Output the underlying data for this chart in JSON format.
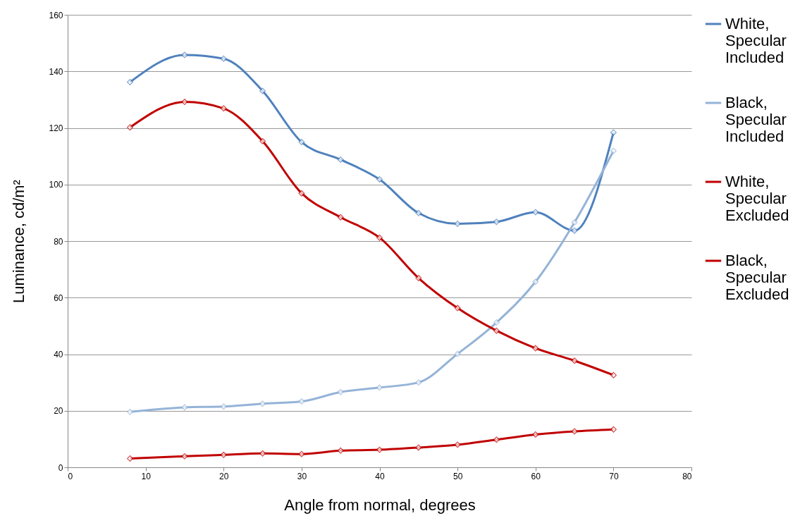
{
  "chart_data": {
    "type": "line",
    "xlabel": "Angle from normal, degrees",
    "ylabel": "Luminance, cd/m²",
    "x": [
      8,
      15,
      20,
      25,
      30,
      35,
      40,
      45,
      50,
      55,
      60,
      65,
      70
    ],
    "series": [
      {
        "name": "White, Specular Included",
        "color": "#4f81bd",
        "values": [
          136.2,
          145.8,
          144.5,
          133.1,
          115.0,
          108.8,
          101.8,
          89.9,
          86.1,
          86.8,
          90.2,
          83.7,
          118.4
        ]
      },
      {
        "name": "Black, Specular Included",
        "color": "#95b3d7",
        "values": [
          19.6,
          21.2,
          21.5,
          22.5,
          23.3,
          26.6,
          28.2,
          30.0,
          40.1,
          51.2,
          65.6,
          86.6,
          111.9
        ]
      },
      {
        "name": "White, Specular Excluded",
        "color": "#c00000",
        "values": [
          120.2,
          129.2,
          126.9,
          115.3,
          96.9,
          88.4,
          81.2,
          66.9,
          56.3,
          48.3,
          42.1,
          37.7,
          32.6
        ]
      },
      {
        "name": "Black, Specular Excluded",
        "color": "#c00000",
        "values": [
          3.1,
          3.9,
          4.4,
          4.9,
          4.7,
          5.9,
          6.2,
          7.0,
          8.0,
          9.8,
          11.6,
          12.7,
          13.4
        ]
      }
    ],
    "xlim": [
      0,
      80
    ],
    "xticks": [
      0,
      10,
      20,
      30,
      40,
      50,
      60,
      70,
      80
    ],
    "ylim": [
      0,
      160
    ],
    "yticks": [
      0,
      20,
      40,
      60,
      80,
      100,
      120,
      140,
      160
    ],
    "grid": "y",
    "legend": "right",
    "marker": "diamond",
    "line_style": "solid"
  }
}
